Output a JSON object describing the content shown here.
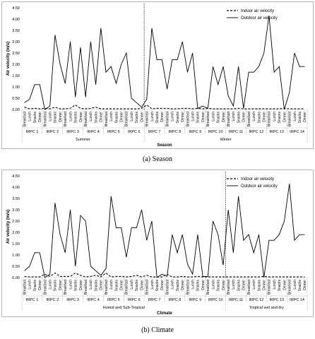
{
  "captions": [
    "(a) Season",
    "(b) Climate"
  ],
  "chart_data": [
    {
      "type": "line",
      "ylabel": "Air velocity (m/s)",
      "xlabel": "Season",
      "ylim": [
        0,
        4.5
      ],
      "yticks": [
        "0.00",
        "0.50",
        "1.00",
        "1.50",
        "2.00",
        "2.50",
        "3.00",
        "3.50",
        "4.00",
        "4.50"
      ],
      "grid": false,
      "legend": "top-right",
      "meals": [
        "Breakfast",
        "Lunch",
        "Snacks",
        "Dinner"
      ],
      "irpc_labels": [
        "IRPC 1",
        "IRPC 2",
        "IRPC 3",
        "IRPC 4",
        "IRPC 5",
        "IRPC 6",
        "IRPC 7",
        "IRPC 8",
        "IRPC 9",
        "IRPC 10",
        "IRPC 11",
        "IRPC 12",
        "IRPC 13",
        "IRPC 14"
      ],
      "groups": [
        {
          "label": "Summer",
          "count": 6
        },
        {
          "label": "Winter",
          "count": 8
        }
      ],
      "series": [
        {
          "name": "Indoor air velocity",
          "style": "dashed",
          "values": [
            0.1,
            0.03,
            0.05,
            0.03,
            0.05,
            0.03,
            0.1,
            0.03,
            0.03,
            0.05,
            0.2,
            0.05,
            0.03,
            0.05,
            0.1,
            0.03,
            0.03,
            0.03,
            0.03,
            0.03,
            0.03,
            0.03,
            0.03,
            0.05,
            0.2,
            0.03,
            0.05,
            0.05,
            0.05,
            0.03,
            0.03,
            0.05,
            0.05,
            0.03,
            0.05,
            0.03,
            0.05,
            0.03,
            0.03,
            0.03,
            0.03,
            0.03,
            0.05,
            0.03,
            0.03,
            0.03,
            0.03,
            0.03,
            0.03,
            0.03,
            0.03,
            0.05,
            0.03,
            0.03,
            0.03,
            0.03
          ]
        },
        {
          "name": "Outdoor air velocity",
          "style": "solid",
          "values": [
            0.3,
            0.45,
            1.1,
            1.1,
            0.0,
            0.15,
            3.3,
            2.0,
            1.15,
            3.0,
            0.55,
            2.75,
            0.55,
            3.0,
            1.1,
            3.6,
            1.65,
            1.9,
            1.15,
            2.0,
            2.5,
            0.5,
            0.3,
            0.1,
            0.45,
            3.6,
            2.2,
            2.2,
            0.9,
            2.2,
            2.2,
            3.0,
            1.65,
            2.5,
            0.05,
            0.15,
            0.05,
            1.9,
            1.1,
            1.9,
            0.6,
            0.15,
            1.9,
            0.05,
            1.65,
            1.65,
            1.9,
            2.5,
            4.15,
            1.65,
            1.9,
            0.0,
            0.75,
            2.5,
            1.9,
            1.9
          ]
        }
      ]
    },
    {
      "type": "line",
      "ylabel": "Air velocity (m/s)",
      "xlabel": "Climate",
      "ylim": [
        0,
        4.5
      ],
      "yticks": [
        "0.00",
        "0.50",
        "1.00",
        "1.50",
        "2.00",
        "2.50",
        "3.00",
        "3.50",
        "4.00",
        "4.50"
      ],
      "grid": false,
      "legend": "top-right",
      "meals": [
        "Breakfast",
        "Lunch",
        "Snacks",
        "Dinner"
      ],
      "irpc_labels": [
        "IRPC 1",
        "IRPC 2",
        "IRPC 3",
        "IRPC 4",
        "IRPC 5",
        "IRPC 6",
        "IRPC 7",
        "IRPC 8",
        "IRPC 9",
        "IRPC 10",
        "IRPC 11",
        "IRPC 12",
        "IRPC 13",
        "IRPC 14"
      ],
      "groups": [
        {
          "label": "Humid and Sub-Tropical",
          "count": 10
        },
        {
          "label": "Tropical wet and dry",
          "count": 4
        }
      ],
      "series": [
        {
          "name": "Indoor air velocity",
          "style": "dashed",
          "values": [
            0.05,
            0.03,
            0.03,
            0.03,
            0.15,
            0.05,
            0.2,
            0.05,
            0.05,
            0.05,
            0.2,
            0.1,
            0.03,
            0.05,
            0.1,
            0.03,
            0.2,
            0.03,
            0.05,
            0.05,
            0.03,
            0.05,
            0.1,
            0.03,
            0.1,
            0.03,
            0.03,
            0.03,
            0.15,
            0.03,
            0.03,
            0.05,
            0.03,
            0.03,
            0.05,
            0.03,
            0.03,
            0.03,
            0.03,
            0.03,
            0.03,
            0.03,
            0.03,
            0.03,
            0.03,
            0.03,
            0.03,
            0.05,
            0.03,
            0.03,
            0.03,
            0.03,
            0.03,
            0.03,
            0.03,
            0.03
          ]
        },
        {
          "name": "Outdoor air velocity",
          "style": "solid",
          "values": [
            0.3,
            0.5,
            1.1,
            1.1,
            0.0,
            0.15,
            3.3,
            1.9,
            1.1,
            3.0,
            0.5,
            2.75,
            2.5,
            0.5,
            0.3,
            0.1,
            0.4,
            3.6,
            2.2,
            2.2,
            0.9,
            2.2,
            2.2,
            3.0,
            1.65,
            2.5,
            0.0,
            0.15,
            0.05,
            1.9,
            1.1,
            1.9,
            0.6,
            0.15,
            1.9,
            0.05,
            0.05,
            2.5,
            1.9,
            0.55,
            3.0,
            1.1,
            3.6,
            1.65,
            1.9,
            1.1,
            1.9,
            0.0,
            1.65,
            1.65,
            1.9,
            2.5,
            4.15,
            1.65,
            1.9,
            1.9
          ]
        }
      ]
    }
  ]
}
